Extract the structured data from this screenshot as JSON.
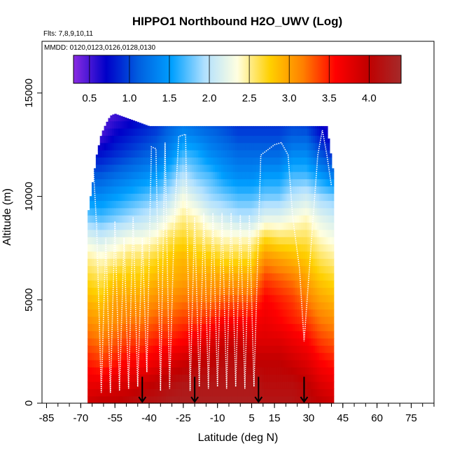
{
  "chart_data": {
    "type": "heatmap",
    "title": "HIPPO1 Northbound H2O_UWV (Log)",
    "subtitle_flights": "Flts: 7,8,9,10,11",
    "subtitle_dates": "MMDD: 0120,0123,0126,0128,0130",
    "xlabel": "Latitude (deg N)",
    "ylabel": "Altitude (m)",
    "xlim": [
      -87,
      85
    ],
    "ylim": [
      0,
      17500
    ],
    "x_ticks": [
      -85,
      -70,
      -55,
      -40,
      -25,
      -10,
      5,
      15,
      30,
      45,
      60,
      75
    ],
    "x_tick_labels": [
      "-85",
      "-70",
      "-55",
      "-40",
      "-25",
      "-10",
      "5",
      "15",
      "30",
      "45",
      "60",
      "75"
    ],
    "x_minor_step": 5,
    "y_ticks": [
      0,
      5000,
      10000,
      15000
    ],
    "y_tick_labels": [
      "0",
      "5000",
      "10000",
      "15000"
    ],
    "colorbar": {
      "range": [
        0.3,
        4.4
      ],
      "ticks": [
        0.5,
        1.0,
        1.5,
        2.0,
        2.5,
        3.0,
        3.5,
        4.0
      ],
      "tick_labels": [
        "0.5",
        "1.0",
        "1.5",
        "2.0",
        "2.5",
        "3.0",
        "3.5",
        "4.0"
      ],
      "colors": [
        "#8a2be2",
        "#0000c8",
        "#0060e0",
        "#00a0ff",
        "#b0e0ff",
        "#ffffe0",
        "#ffd000",
        "#ff8000",
        "#ff0000",
        "#c00000",
        "#a52a2a"
      ]
    },
    "profile_boundaries": [
      -43,
      -20,
      8,
      28
    ],
    "data_extent": {
      "lat_range": [
        -67,
        41
      ],
      "top_altitude": [
        [
          -67,
          9000
        ],
        [
          -65,
          10500
        ],
        [
          -63,
          12000
        ],
        [
          -61,
          13000
        ],
        [
          -59,
          13500
        ],
        [
          -57,
          13900
        ],
        [
          -55,
          14000
        ],
        [
          -40,
          13400
        ],
        [
          0,
          13400
        ],
        [
          38,
          13400
        ],
        [
          41,
          11000
        ]
      ]
    },
    "field": {
      "description": "log H2O field vs latitude (rows) and altitude (cols)",
      "latitudes": [
        -67,
        -61,
        -55,
        -49,
        -43,
        -37,
        -31,
        -25,
        -19,
        -13,
        -7,
        -1,
        5,
        11,
        17,
        23,
        29,
        35,
        41
      ],
      "altitudes": [
        0,
        1000,
        2000,
        3000,
        4000,
        5000,
        6000,
        7000,
        8000,
        9000,
        10000,
        11000,
        12000,
        13000,
        14000
      ],
      "values": [
        [
          3.9,
          3.7,
          3.5,
          3.3,
          3.1,
          2.9,
          2.7,
          2.5,
          2.2,
          1.8,
          1.4,
          1.1,
          0.8,
          0.5,
          0.4
        ],
        [
          4.0,
          3.7,
          3.4,
          3.2,
          3.0,
          2.8,
          2.6,
          2.4,
          2.1,
          1.7,
          1.4,
          1.1,
          0.8,
          0.5,
          0.4
        ],
        [
          4.0,
          3.8,
          3.5,
          3.3,
          3.1,
          3.0,
          2.8,
          2.5,
          2.2,
          1.8,
          1.5,
          1.2,
          0.9,
          0.7,
          0.5
        ],
        [
          4.1,
          3.8,
          3.6,
          3.4,
          3.2,
          3.0,
          2.8,
          2.6,
          2.3,
          1.9,
          1.6,
          1.3,
          1.0,
          0.8,
          0.6
        ],
        [
          4.2,
          3.9,
          3.6,
          3.4,
          3.2,
          3.0,
          2.8,
          2.6,
          2.3,
          2.0,
          1.7,
          1.4,
          1.1,
          0.9,
          0.7
        ],
        [
          4.2,
          4.0,
          3.7,
          3.5,
          3.3,
          3.1,
          2.9,
          2.7,
          2.4,
          2.1,
          1.8,
          1.5,
          1.2,
          1.0,
          0.8
        ],
        [
          4.3,
          4.1,
          3.8,
          3.5,
          3.3,
          3.1,
          2.9,
          2.8,
          2.6,
          2.3,
          2.0,
          1.7,
          1.4,
          1.2,
          1.0
        ],
        [
          4.3,
          4.2,
          3.9,
          3.6,
          3.4,
          3.2,
          3.0,
          2.9,
          2.7,
          2.5,
          2.3,
          2.0,
          1.7,
          1.4,
          1.1
        ],
        [
          4.3,
          4.2,
          4.0,
          3.7,
          3.4,
          3.2,
          3.0,
          2.8,
          2.6,
          2.4,
          2.1,
          1.8,
          1.6,
          1.3,
          1.0
        ],
        [
          4.3,
          4.2,
          4.0,
          3.8,
          3.5,
          3.2,
          3.0,
          2.8,
          2.5,
          2.2,
          1.9,
          1.7,
          1.4,
          1.2,
          0.9
        ],
        [
          4.3,
          4.2,
          4.1,
          3.9,
          3.6,
          3.3,
          3.0,
          2.7,
          2.4,
          2.1,
          1.8,
          1.5,
          1.3,
          1.1,
          0.9
        ],
        [
          4.3,
          4.2,
          4.1,
          3.9,
          3.6,
          3.3,
          3.0,
          2.7,
          2.4,
          2.0,
          1.7,
          1.4,
          1.2,
          1.0,
          0.8
        ],
        [
          4.3,
          4.2,
          4.0,
          3.8,
          3.6,
          3.3,
          3.0,
          2.7,
          2.4,
          2.0,
          1.7,
          1.4,
          1.2,
          1.0,
          0.8
        ],
        [
          4.2,
          4.1,
          4.0,
          3.8,
          3.7,
          3.6,
          3.4,
          3.1,
          2.7,
          2.2,
          1.8,
          1.5,
          1.2,
          1.0,
          0.8
        ],
        [
          4.2,
          4.1,
          4.0,
          3.8,
          3.6,
          3.5,
          3.3,
          3.0,
          2.6,
          2.2,
          1.8,
          1.5,
          1.2,
          1.0,
          0.8
        ],
        [
          4.2,
          4.1,
          3.9,
          3.7,
          3.5,
          3.4,
          3.2,
          2.9,
          2.6,
          2.3,
          2.0,
          1.7,
          1.4,
          1.1,
          0.9
        ],
        [
          4.1,
          4.0,
          3.8,
          3.6,
          3.4,
          3.2,
          3.0,
          2.8,
          2.6,
          2.4,
          2.1,
          1.7,
          1.4,
          1.1,
          0.8
        ],
        [
          4.0,
          3.8,
          3.6,
          3.4,
          3.2,
          3.0,
          2.8,
          2.6,
          2.4,
          2.2,
          1.9,
          1.5,
          1.1,
          0.8,
          0.6
        ],
        [
          3.9,
          3.7,
          3.5,
          3.3,
          3.1,
          2.9,
          2.7,
          2.5,
          2.3,
          2.1,
          1.8,
          1.3,
          0.9,
          0.6,
          0.5
        ]
      ]
    },
    "flight_track": [
      [
        -67,
        13500
      ],
      [
        -65,
        12500
      ],
      [
        -63,
        8500
      ],
      [
        -61,
        500
      ],
      [
        -59,
        8000
      ],
      [
        -57,
        500
      ],
      [
        -55,
        8800
      ],
      [
        -53,
        600
      ],
      [
        -51,
        8000
      ],
      [
        -49,
        700
      ],
      [
        -47,
        9000
      ],
      [
        -45,
        800
      ],
      [
        -43,
        8000
      ],
      [
        -41,
        1500
      ],
      [
        -39,
        12400
      ],
      [
        -37,
        12300
      ],
      [
        -35,
        600
      ],
      [
        -33,
        12600
      ],
      [
        -31,
        700
      ],
      [
        -29,
        8500
      ],
      [
        -27,
        12900
      ],
      [
        -24,
        13000
      ],
      [
        -22,
        600
      ],
      [
        -20,
        9000
      ],
      [
        -18,
        800
      ],
      [
        -16,
        9200
      ],
      [
        -14,
        700
      ],
      [
        -12,
        9200
      ],
      [
        -10,
        800
      ],
      [
        -8,
        9200
      ],
      [
        -6,
        700
      ],
      [
        -4,
        9200
      ],
      [
        -2,
        800
      ],
      [
        0,
        9100
      ],
      [
        2,
        700
      ],
      [
        4,
        9100
      ],
      [
        6,
        800
      ],
      [
        8,
        8300
      ],
      [
        9,
        12000
      ],
      [
        15,
        12500
      ],
      [
        18,
        12600
      ],
      [
        21,
        12000
      ],
      [
        23,
        9000
      ],
      [
        26,
        6500
      ],
      [
        28,
        3000
      ],
      [
        30,
        6000
      ],
      [
        32,
        9000
      ],
      [
        34,
        12000
      ],
      [
        36,
        13200
      ],
      [
        38,
        12000
      ],
      [
        40,
        10500
      ]
    ]
  }
}
